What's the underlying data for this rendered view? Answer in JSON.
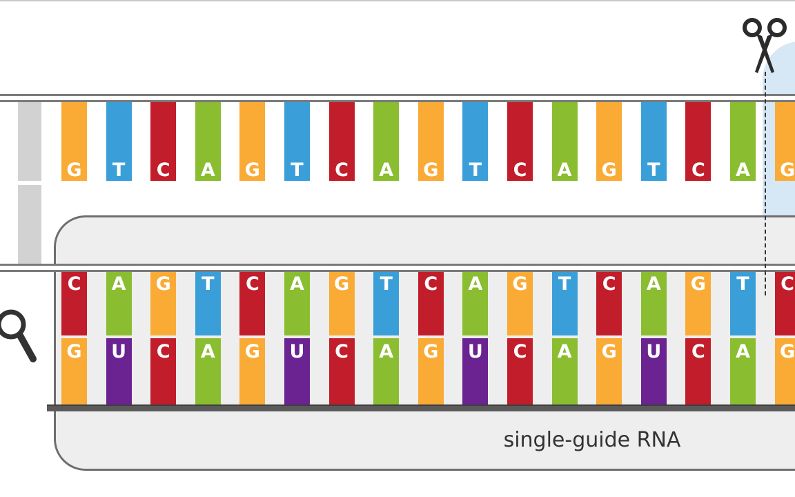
{
  "colors": {
    "A": "#8bbd31",
    "C": "#c21d2a",
    "G": "#f9ab36",
    "T": "#3a9fd9",
    "U": "#6a2391"
  },
  "dna_top_strand": [
    "G",
    "T",
    "C",
    "A",
    "G",
    "T",
    "C",
    "A",
    "G",
    "T",
    "C",
    "A",
    "G",
    "T",
    "C",
    "A",
    "G"
  ],
  "dna_bottom_strand": [
    "C",
    "A",
    "G",
    "T",
    "C",
    "A",
    "G",
    "T",
    "C",
    "A",
    "G",
    "T",
    "C",
    "A",
    "G",
    "T",
    "C"
  ],
  "guide_rna_strand": [
    "G",
    "U",
    "C",
    "A",
    "G",
    "U",
    "C",
    "A",
    "G",
    "U",
    "C",
    "A",
    "G",
    "U",
    "C",
    "A",
    "G"
  ],
  "caption": "single-guide RNA",
  "icons": {
    "cut_site": "scissors-icon",
    "search": "magnifier-icon"
  }
}
